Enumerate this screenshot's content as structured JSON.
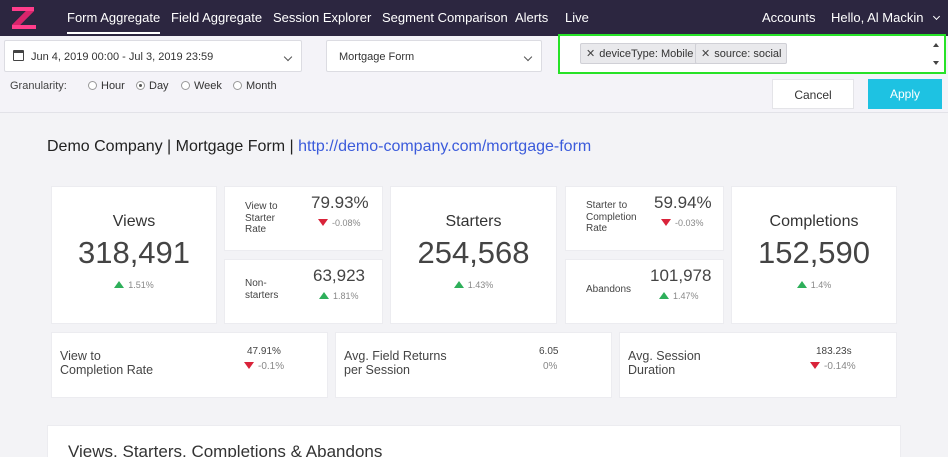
{
  "nav": {
    "items": [
      {
        "label": "Form Aggregate",
        "active": true
      },
      {
        "label": "Field Aggregate"
      },
      {
        "label": "Session Explorer"
      },
      {
        "label": "Segment Comparison"
      },
      {
        "label": "Alerts"
      },
      {
        "label": "Live"
      }
    ],
    "accounts": "Accounts",
    "greeting": "Hello, Al Mackin"
  },
  "filters": {
    "date_range": "Jun 4, 2019 00:00 - Jul 3, 2019 23:59",
    "form": "Mortgage Form",
    "tags": [
      "deviceType: Mobile",
      "source: social"
    ],
    "granularity_label": "Granularity:",
    "granularity_options": [
      "Hour",
      "Day",
      "Week",
      "Month"
    ],
    "granularity_selected": "Day",
    "cancel": "Cancel",
    "apply": "Apply"
  },
  "title": {
    "company_form": "Demo Company | Mortgage Form |",
    "url": "http://demo-company.com/mortgage-form"
  },
  "metrics": {
    "views": {
      "label": "Views",
      "value": "318,491",
      "delta": "1.51%",
      "direction": "up"
    },
    "view_to_starter": {
      "label": [
        "View to",
        "Starter",
        "Rate"
      ],
      "value": "79.93%",
      "delta": "-0.08%",
      "direction": "down"
    },
    "non_starters": {
      "label": [
        "Non-",
        "starters"
      ],
      "value": "63,923",
      "delta": "1.81%",
      "direction": "up"
    },
    "starters": {
      "label": "Starters",
      "value": "254,568",
      "delta": "1.43%",
      "direction": "up"
    },
    "starter_to_completion": {
      "label": [
        "Starter to",
        "Completion",
        "Rate"
      ],
      "value": "59.94%",
      "delta": "-0.03%",
      "direction": "down"
    },
    "abandons": {
      "label": [
        "Abandons"
      ],
      "value": "101,978",
      "delta": "1.47%",
      "direction": "up"
    },
    "completions": {
      "label": "Completions",
      "value": "152,590",
      "delta": "1.4%",
      "direction": "up"
    },
    "view_to_completion": {
      "label": [
        "View to",
        "Completion Rate"
      ],
      "value": "47.91%",
      "delta": "-0.1%",
      "direction": "down"
    },
    "avg_field_returns": {
      "label": [
        "Avg. Field Returns",
        "per Session"
      ],
      "value": "6.05",
      "delta": "0%",
      "direction": "none"
    },
    "avg_session_duration": {
      "label": [
        "Avg. Session",
        "Duration"
      ],
      "value": "183.23s",
      "delta": "-0.14%",
      "direction": "down"
    }
  },
  "chart_section": {
    "title": "Views, Starters, Completions & Abandons"
  },
  "colors": {
    "nav_bg": "#2c2640",
    "accent": "#1ec2e2",
    "up": "#2eaf5a",
    "down": "#d9233a",
    "highlight": "#27e227",
    "link": "#3b5bdb"
  },
  "icons": [
    "zuko-logo",
    "calendar-icon",
    "chevron-down-icon",
    "close-icon",
    "triangle-up-icon",
    "triangle-down-icon"
  ]
}
